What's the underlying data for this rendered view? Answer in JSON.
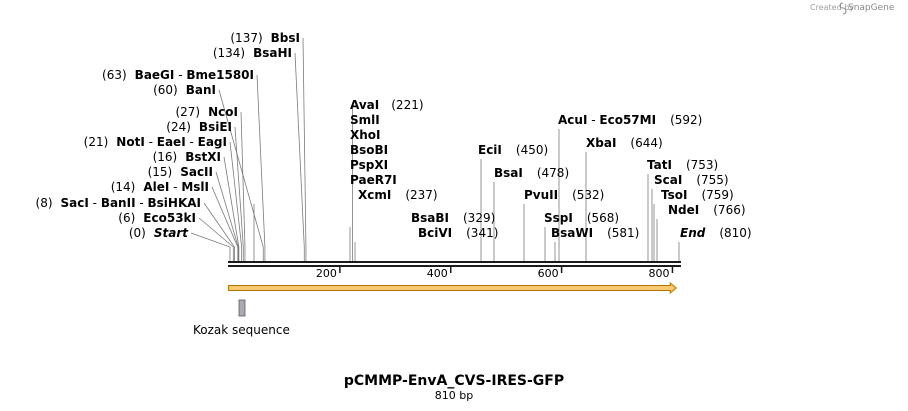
{
  "credit": {
    "created_by": "Created by",
    "brand": "SnapGene"
  },
  "map": {
    "name": "pCMMP-EnvA_CVS-IRES-GFP",
    "length_label": "810 bp",
    "length_bp": 810,
    "colors": {
      "backbone": "#1a1a1a",
      "feature_fill": "#f6c86f",
      "feature_stroke": "#b07800",
      "kozak_fill": "#a9aab2",
      "leader": "#7a7a7a",
      "text": "#000000"
    },
    "ticks": [
      {
        "bp": 200,
        "label": "200"
      },
      {
        "bp": 400,
        "label": "400"
      },
      {
        "bp": 600,
        "label": "600"
      },
      {
        "bp": 800,
        "label": "800"
      }
    ],
    "features": [
      {
        "name": "orf-arrow",
        "label": "",
        "start": 1,
        "end": 805,
        "type": "arrow"
      },
      {
        "name": "kozak-sequence",
        "label": "Kozak sequence",
        "start": 18,
        "end": 30,
        "type": "box"
      }
    ],
    "left_labels": [
      {
        "pos": "(137)",
        "names": [
          "BbsI"
        ],
        "site": 137
      },
      {
        "pos": "(134)",
        "names": [
          "BsaHI"
        ],
        "site": 134
      },
      {
        "pos": "(63)",
        "names": [
          "BaeGI",
          "Bme1580I"
        ],
        "site": 63
      },
      {
        "pos": "(60)",
        "names": [
          "BanI"
        ],
        "site": 60
      },
      {
        "pos": "(27)",
        "names": [
          "NcoI"
        ],
        "site": 27
      },
      {
        "pos": "(24)",
        "names": [
          "BsiEI"
        ],
        "site": 24
      },
      {
        "pos": "(21)",
        "names": [
          "NotI",
          "EaeI",
          "EagI"
        ],
        "site": 21
      },
      {
        "pos": "(16)",
        "names": [
          "BstXI"
        ],
        "site": 16
      },
      {
        "pos": "(15)",
        "names": [
          "SacII"
        ],
        "site": 15
      },
      {
        "pos": "(14)",
        "names": [
          "AleI",
          "MslI"
        ],
        "site": 14
      },
      {
        "pos": "(8)",
        "names": [
          "SacI",
          "BanII",
          "BsiHKAI"
        ],
        "site": 8
      },
      {
        "pos": "(6)",
        "names": [
          "Eco53kI"
        ],
        "site": 6
      },
      {
        "pos": "(0)",
        "names": [
          "Start"
        ],
        "site": 0,
        "italic": true
      }
    ],
    "stack_221": {
      "pos": "(221)",
      "names": [
        "AvaI",
        "SmlI",
        "XhoI",
        "BsoBI",
        "PspXI",
        "PaeR7I"
      ],
      "site": 221
    },
    "right_labels": [
      {
        "names": [
          "XcmI"
        ],
        "pos": "(237)",
        "site": 237
      },
      {
        "names": [
          "BsaBI"
        ],
        "pos": "(329)",
        "site": 329
      },
      {
        "names": [
          "BciVI"
        ],
        "pos": "(341)",
        "site": 341
      },
      {
        "names": [
          "EciI"
        ],
        "pos": "(450)",
        "site": 450
      },
      {
        "names": [
          "BsaI"
        ],
        "pos": "(478)",
        "site": 478
      },
      {
        "names": [
          "PvuII"
        ],
        "pos": "(532)",
        "site": 532
      },
      {
        "names": [
          "SspI"
        ],
        "pos": "(568)",
        "site": 568
      },
      {
        "names": [
          "BsaWI"
        ],
        "pos": "(581)",
        "site": 581
      },
      {
        "names": [
          "AcuI",
          "Eco57MI"
        ],
        "pos": "(592)",
        "site": 592
      },
      {
        "names": [
          "XbaI"
        ],
        "pos": "(644)",
        "site": 644
      },
      {
        "names": [
          "TatI"
        ],
        "pos": "(753)",
        "site": 753
      },
      {
        "names": [
          "ScaI"
        ],
        "pos": "(755)",
        "site": 755
      },
      {
        "names": [
          "TsoI"
        ],
        "pos": "(759)",
        "site": 759
      },
      {
        "names": [
          "NdeI"
        ],
        "pos": "(766)",
        "site": 766
      },
      {
        "names": [
          "End"
        ],
        "pos": "(810)",
        "site": 810,
        "italic": true
      }
    ]
  }
}
